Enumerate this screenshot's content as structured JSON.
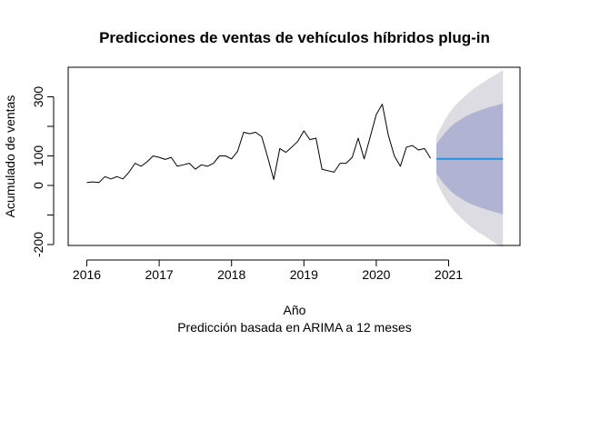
{
  "chart_data": {
    "type": "line",
    "title": "Predicciones de ventas de vehículos híbridos plug-in",
    "xlabel": "Año",
    "subtitle": "Predicción basada en ARIMA a 12 meses",
    "ylabel": "Acumulado de ventas",
    "xlim": [
      2015.75,
      2021.95
    ],
    "ylim": [
      -210,
      410
    ],
    "x_ticks": [
      2016,
      2017,
      2018,
      2019,
      2020,
      2021
    ],
    "y_ticks": [
      -200,
      0,
      100,
      300
    ],
    "y_minor_ticks": [
      -100,
      200
    ],
    "series": [
      {
        "role": "history",
        "color": "#000000",
        "x_start": 2016.0,
        "x_step": 0.08333,
        "values": [
          10,
          12,
          10,
          30,
          22,
          30,
          22,
          45,
          75,
          65,
          80,
          100,
          95,
          88,
          95,
          65,
          70,
          75,
          55,
          70,
          65,
          75,
          100,
          100,
          90,
          115,
          180,
          175,
          180,
          165,
          95,
          20,
          125,
          112,
          130,
          150,
          185,
          155,
          160,
          55,
          50,
          45,
          75,
          75,
          95,
          160,
          90,
          165,
          240,
          275,
          170,
          100,
          65,
          130,
          135,
          120,
          125,
          92
        ]
      },
      {
        "role": "forecast-mean",
        "color": "#2a8fe0",
        "x": [
          2020.83,
          2021.75
        ],
        "values": [
          90,
          90
        ]
      }
    ],
    "bands": [
      {
        "role": "95%",
        "color": "#dcdce2",
        "x": [
          2020.83,
          2020.92,
          2021.0,
          2021.08,
          2021.17,
          2021.25,
          2021.33,
          2021.42,
          2021.5,
          2021.58,
          2021.67,
          2021.75
        ],
        "upper": [
          165,
          210,
          242,
          268,
          290,
          308,
          325,
          340,
          352,
          365,
          378,
          390
        ],
        "lower": [
          15,
          -30,
          -62,
          -88,
          -110,
          -128,
          -145,
          -160,
          -172,
          -185,
          -198,
          -210
        ]
      },
      {
        "role": "80%",
        "color": "#b0b4d2",
        "x": [
          2020.83,
          2020.92,
          2021.0,
          2021.08,
          2021.17,
          2021.25,
          2021.33,
          2021.42,
          2021.5,
          2021.58,
          2021.67,
          2021.75
        ],
        "upper": [
          140,
          170,
          192,
          210,
          224,
          236,
          245,
          253,
          260,
          266,
          272,
          278
        ],
        "lower": [
          40,
          10,
          -12,
          -30,
          -44,
          -56,
          -65,
          -73,
          -80,
          -86,
          -92,
          -98
        ]
      }
    ]
  }
}
